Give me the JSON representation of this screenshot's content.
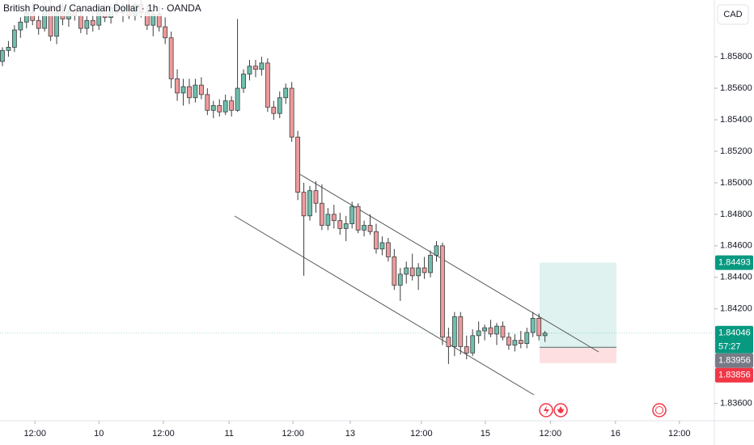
{
  "chart_data": {
    "type": "candlestick",
    "title": "British Pound / Canadian Dollar · 1h · OANDA",
    "currency": "CAD",
    "up_color": "#6fbfae",
    "down_color": "#ee9b9d",
    "wick_color": "#3d3d3d",
    "grid": false,
    "ylim": [
      1.8349,
      1.8616
    ],
    "xlim": [
      -0.4,
      118.1
    ],
    "yticks": [
      {
        "value": 1.836,
        "label": "1.83600"
      },
      {
        "value": 1.842,
        "label": "1.84200"
      },
      {
        "value": 1.844,
        "label": "1.84400"
      },
      {
        "value": 1.846,
        "label": "1.84600"
      },
      {
        "value": 1.848,
        "label": "1.84800"
      },
      {
        "value": 1.85,
        "label": "1.85000"
      },
      {
        "value": 1.852,
        "label": "1.85200"
      },
      {
        "value": 1.854,
        "label": "1.85400"
      },
      {
        "value": 1.856,
        "label": "1.85600"
      },
      {
        "value": 1.858,
        "label": "1.85800"
      }
    ],
    "xticks": [
      {
        "value": 5.4,
        "label": "12:00"
      },
      {
        "value": 16.0,
        "label": "10"
      },
      {
        "value": 26.7,
        "label": "12:00"
      },
      {
        "value": 37.6,
        "label": "11"
      },
      {
        "value": 48.2,
        "label": "12:00"
      },
      {
        "value": 57.7,
        "label": "13"
      },
      {
        "value": 69.5,
        "label": "12:00"
      },
      {
        "value": 80.1,
        "label": "15"
      },
      {
        "value": 90.9,
        "label": "12:00"
      },
      {
        "value": 101.7,
        "label": "16"
      },
      {
        "value": 112.3,
        "label": "12:00"
      }
    ],
    "open": [
      1.8577,
      1.8584,
      1.8586,
      1.8597,
      1.8602,
      1.8608,
      1.8603,
      1.8598,
      1.8611,
      1.8593,
      1.8608,
      1.8604,
      1.8609,
      1.8606,
      1.8598,
      1.8603,
      1.86,
      1.8609,
      1.8605,
      1.8611,
      1.8608,
      1.8612,
      1.8606,
      1.8613,
      1.8608,
      1.86,
      1.8607,
      1.8599,
      1.8592,
      1.8566,
      1.8557,
      1.8561,
      1.8554,
      1.8562,
      1.8556,
      1.8546,
      1.8549,
      1.8545,
      1.8552,
      1.8546,
      1.856,
      1.8569,
      1.8574,
      1.8572,
      1.8576,
      1.8548,
      1.8544,
      1.8554,
      1.856,
      1.8529,
      1.8494,
      1.8479,
      1.8495,
      1.8487,
      1.8473,
      1.848,
      1.8476,
      1.8471,
      1.8474,
      1.8485,
      1.847,
      1.8473,
      1.8469,
      1.8458,
      1.8462,
      1.8453,
      1.8435,
      1.8442,
      1.8446,
      1.8441,
      1.8446,
      1.8443,
      1.8454,
      1.846,
      1.8402,
      1.8396,
      1.8415,
      1.8396,
      1.8392,
      1.8403,
      1.8406,
      1.8408,
      1.8404,
      1.8409,
      1.8402,
      1.8397,
      1.84,
      1.8398,
      1.8405,
      1.8414,
      1.8403
    ],
    "high": [
      1.8586,
      1.859,
      1.86,
      1.8605,
      1.8612,
      1.8614,
      1.8607,
      1.8615,
      1.8616,
      1.8611,
      1.8614,
      1.8612,
      1.8615,
      1.861,
      1.8606,
      1.8608,
      1.8612,
      1.8615,
      1.8613,
      1.8616,
      1.8614,
      1.8616,
      1.8615,
      1.8616,
      1.8613,
      1.861,
      1.8612,
      1.8605,
      1.8596,
      1.8572,
      1.8566,
      1.8566,
      1.8566,
      1.8567,
      1.856,
      1.8552,
      1.8553,
      1.8556,
      1.8555,
      1.8604,
      1.8572,
      1.8578,
      1.8578,
      1.858,
      1.8579,
      1.8552,
      1.8558,
      1.8563,
      1.8564,
      1.8533,
      1.85,
      1.8498,
      1.8501,
      1.8499,
      1.8484,
      1.8486,
      1.8481,
      1.8479,
      1.8488,
      1.8487,
      1.8476,
      1.848,
      1.8474,
      1.8466,
      1.8465,
      1.8458,
      1.8446,
      1.845,
      1.8455,
      1.8449,
      1.8453,
      1.8457,
      1.8463,
      1.8462,
      1.8408,
      1.8418,
      1.8418,
      1.8403,
      1.8407,
      1.8412,
      1.841,
      1.8413,
      1.8411,
      1.8412,
      1.8405,
      1.8404,
      1.8406,
      1.8408,
      1.8418,
      1.8417,
      1.8406
    ],
    "low": [
      1.8574,
      1.858,
      1.8583,
      1.8592,
      1.8598,
      1.86,
      1.8594,
      1.8596,
      1.859,
      1.8588,
      1.86,
      1.8599,
      1.8603,
      1.8595,
      1.8594,
      1.8596,
      1.8597,
      1.8602,
      1.8601,
      1.8606,
      1.8602,
      1.8604,
      1.8603,
      1.8605,
      1.8597,
      1.8593,
      1.8596,
      1.8588,
      1.856,
      1.8552,
      1.8549,
      1.855,
      1.8551,
      1.8553,
      1.8543,
      1.8541,
      1.8542,
      1.8543,
      1.8542,
      1.8545,
      1.8557,
      1.8565,
      1.8567,
      1.8568,
      1.8545,
      1.854,
      1.8541,
      1.855,
      1.8526,
      1.8489,
      1.8441,
      1.8476,
      1.8481,
      1.847,
      1.847,
      1.8471,
      1.8467,
      1.8463,
      1.8471,
      1.8468,
      1.8466,
      1.8467,
      1.8455,
      1.8454,
      1.845,
      1.8432,
      1.8425,
      1.8436,
      1.8438,
      1.8432,
      1.8439,
      1.844,
      1.845,
      1.8397,
      1.8385,
      1.839,
      1.8391,
      1.8388,
      1.839,
      1.8398,
      1.84,
      1.8402,
      1.8397,
      1.84,
      1.8394,
      1.8393,
      1.8395,
      1.8395,
      1.8402,
      1.84,
      1.8399
    ],
    "close": [
      1.8584,
      1.8586,
      1.8597,
      1.8602,
      1.8608,
      1.8603,
      1.8598,
      1.8611,
      1.8593,
      1.8608,
      1.8604,
      1.8609,
      1.8606,
      1.8598,
      1.8603,
      1.86,
      1.8609,
      1.8605,
      1.8611,
      1.8608,
      1.8612,
      1.8606,
      1.8613,
      1.8608,
      1.86,
      1.8607,
      1.8599,
      1.8592,
      1.8566,
      1.8557,
      1.8561,
      1.8554,
      1.8562,
      1.8556,
      1.8546,
      1.8549,
      1.8545,
      1.8552,
      1.8546,
      1.856,
      1.8569,
      1.8574,
      1.8572,
      1.8576,
      1.8548,
      1.8544,
      1.8554,
      1.856,
      1.8529,
      1.8494,
      1.8479,
      1.8495,
      1.8487,
      1.8473,
      1.848,
      1.8476,
      1.8471,
      1.8474,
      1.8485,
      1.847,
      1.8473,
      1.8469,
      1.8458,
      1.8462,
      1.8453,
      1.8435,
      1.8442,
      1.8446,
      1.8441,
      1.8446,
      1.8443,
      1.8454,
      1.846,
      1.8402,
      1.8396,
      1.8415,
      1.8396,
      1.8392,
      1.8403,
      1.8406,
      1.8408,
      1.8404,
      1.8409,
      1.8402,
      1.8397,
      1.84,
      1.8398,
      1.8405,
      1.8414,
      1.8403,
      1.84046
    ],
    "position": {
      "target": {
        "value": 1.84493,
        "label": "1.84493",
        "color": "#089981"
      },
      "entry": {
        "value": 1.83956,
        "label": "1.83956",
        "color": "#787b86"
      },
      "stop": {
        "value": 1.83856,
        "label": "1.83856",
        "color": "#f23645"
      }
    },
    "last_price": {
      "value": 1.84046,
      "label": "1.84046",
      "countdown": "57:27",
      "color": "#089981"
    }
  }
}
